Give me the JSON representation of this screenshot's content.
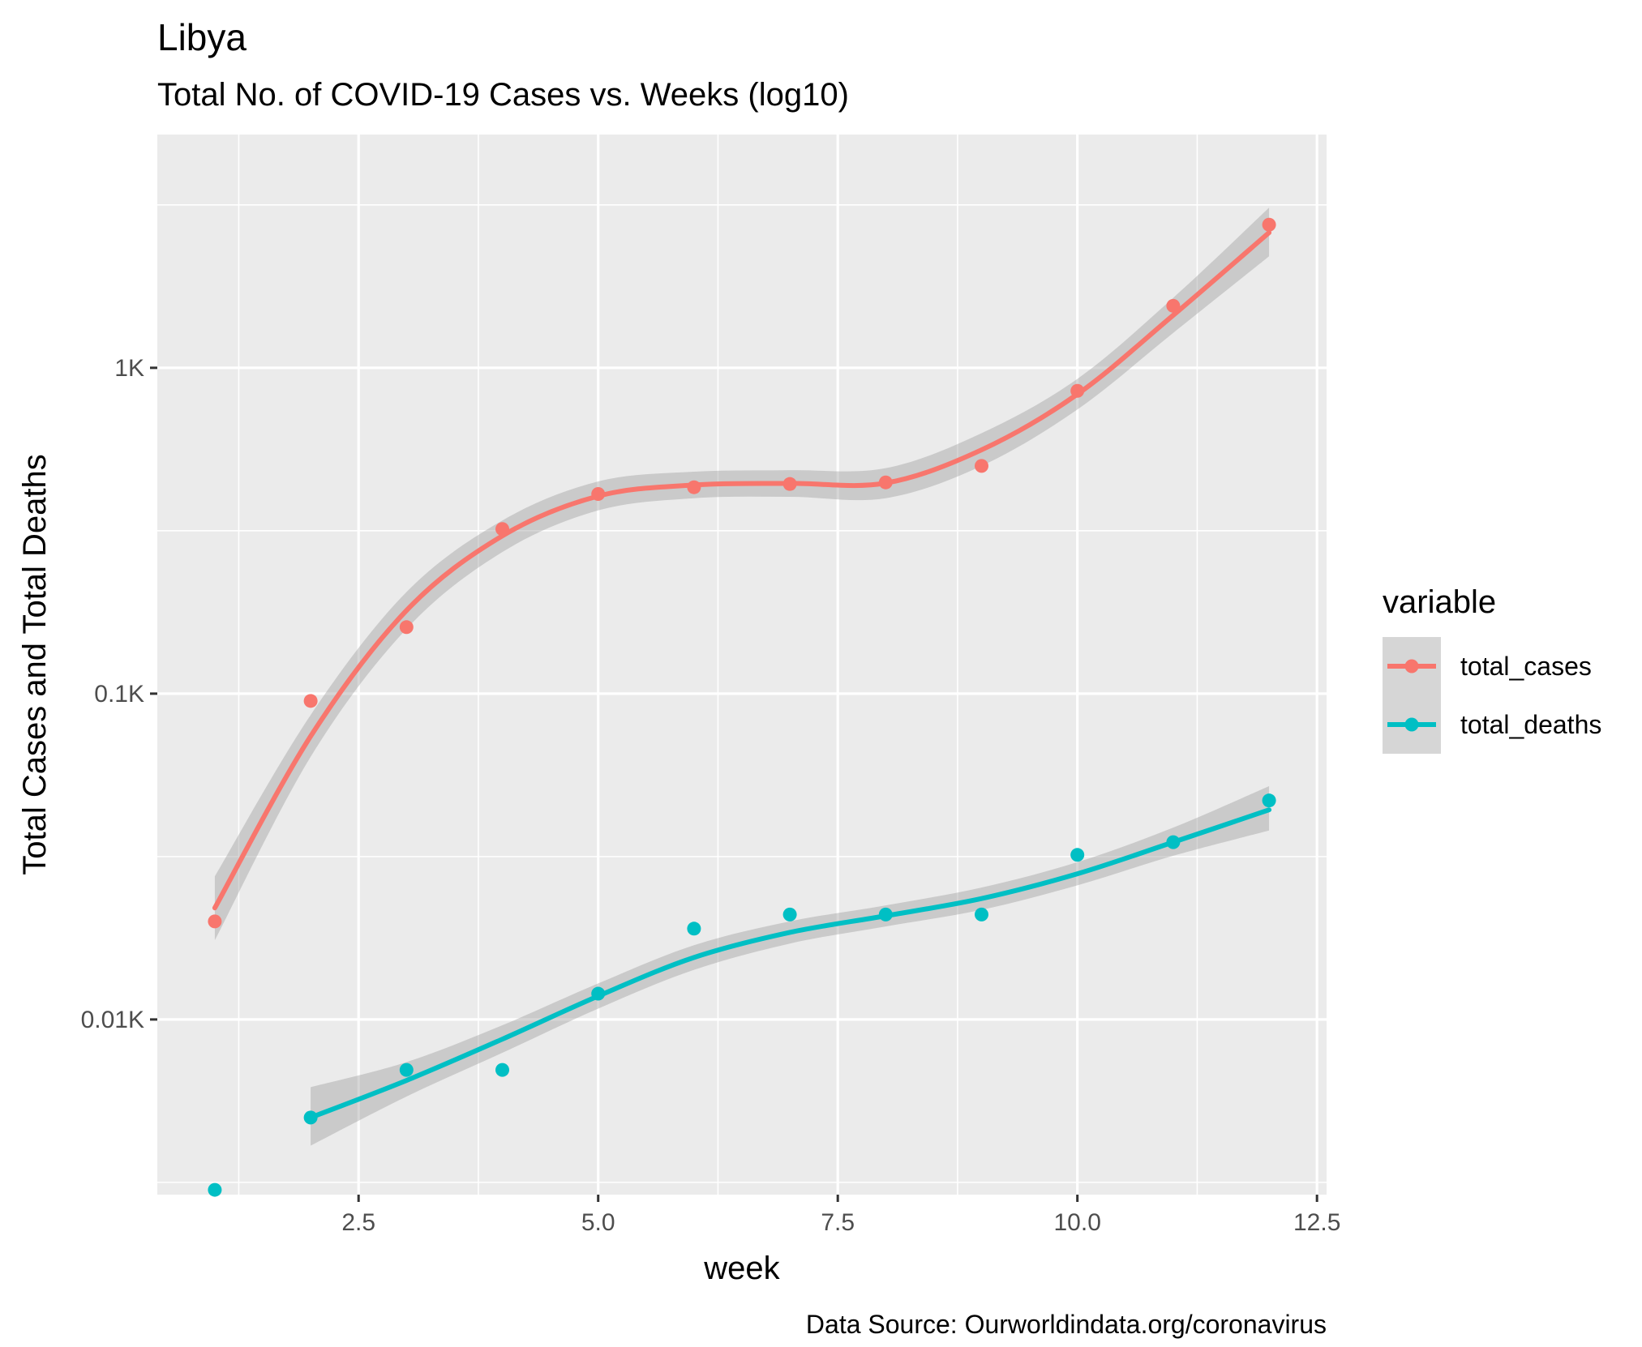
{
  "chart_data": {
    "type": "line",
    "title": "Libya",
    "subtitle": "Total No. of COVID-19 Cases vs. Weeks (log10)",
    "caption": "Data Source: Ourworldindata.org/coronavirus",
    "xlabel": "week",
    "ylabel": "Total Cases and Total Deaths",
    "y_scale": "log10",
    "xlim": [
      0.4,
      12.6
    ],
    "ylim": [
      0.0029,
      5.2
    ],
    "x_ticks": [
      2.5,
      5.0,
      7.5,
      10.0,
      12.5
    ],
    "x_tick_labels": [
      "2.5",
      "5.0",
      "7.5",
      "10.0",
      "12.5"
    ],
    "y_ticks": [
      0.01,
      0.1,
      1
    ],
    "y_tick_labels": [
      "0.01K",
      "0.1K",
      "1K"
    ],
    "grid": true,
    "legend": {
      "title": "variable",
      "position": "right"
    },
    "x": [
      1,
      2,
      3,
      4,
      5,
      6,
      7,
      8,
      9,
      10,
      11,
      12
    ],
    "series": [
      {
        "name": "total_cases",
        "color": "#F8766D",
        "points": [
          0.02,
          0.095,
          0.16,
          0.32,
          0.41,
          0.43,
          0.44,
          0.445,
          0.5,
          0.85,
          1.55,
          2.75
        ],
        "smooth": [
          0.022,
          0.074,
          0.18,
          0.305,
          0.404,
          0.437,
          0.442,
          0.443,
          0.56,
          0.83,
          1.45,
          2.6
        ],
        "smooth_lower": [
          0.0175,
          0.064,
          0.158,
          0.272,
          0.365,
          0.398,
          0.402,
          0.398,
          0.5,
          0.745,
          1.28,
          2.2
        ],
        "smooth_upper": [
          0.0275,
          0.086,
          0.205,
          0.34,
          0.448,
          0.48,
          0.485,
          0.492,
          0.63,
          0.925,
          1.64,
          3.1
        ]
      },
      {
        "name": "total_deaths",
        "color": "#00BFC4",
        "points": [
          0.003,
          0.005,
          0.007,
          0.007,
          0.012,
          0.019,
          0.021,
          0.021,
          0.021,
          0.032,
          0.035,
          0.047
        ],
        "smooth": [
          null,
          0.005,
          0.0065,
          0.0087,
          0.0118,
          0.0155,
          0.0185,
          0.0208,
          0.0235,
          0.028,
          0.035,
          0.044
        ],
        "smooth_lower": [
          null,
          0.0041,
          0.0058,
          0.0079,
          0.0108,
          0.0142,
          0.0171,
          0.0193,
          0.0217,
          0.0258,
          0.0318,
          0.038
        ],
        "smooth_upper": [
          null,
          0.0062,
          0.0074,
          0.0096,
          0.0129,
          0.0169,
          0.02,
          0.0224,
          0.0254,
          0.0304,
          0.0388,
          0.052
        ]
      }
    ]
  }
}
